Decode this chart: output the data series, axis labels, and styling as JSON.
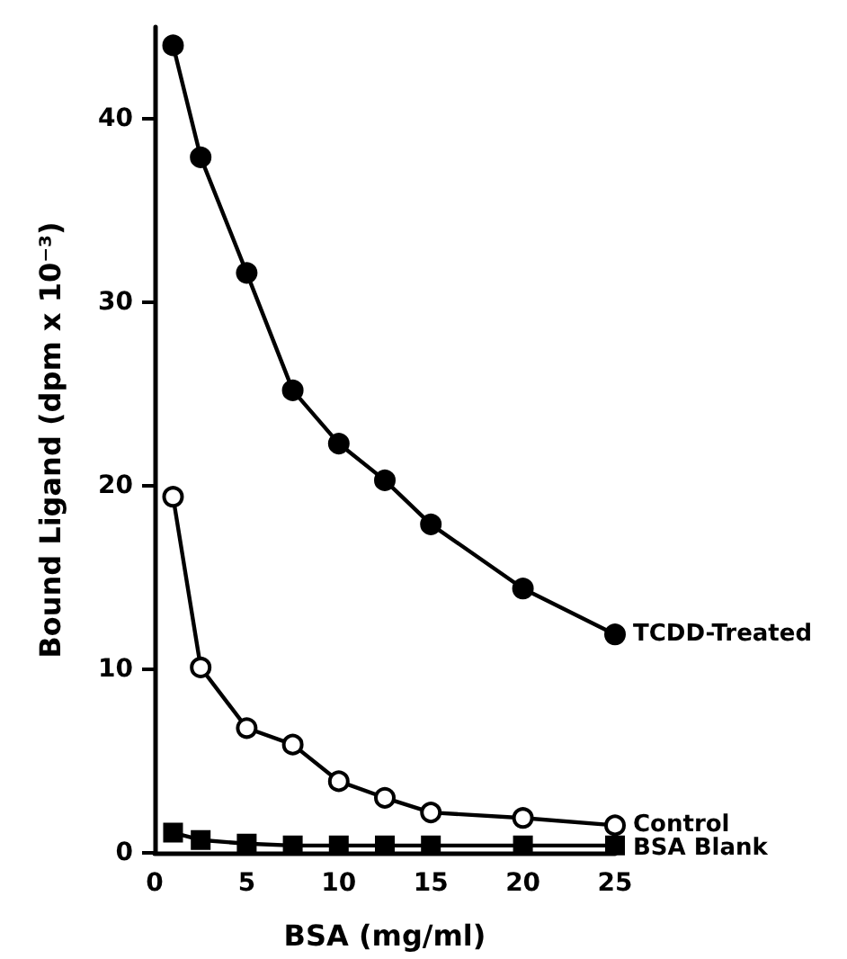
{
  "chart_data": {
    "type": "line",
    "xlabel": "BSA (mg/ml)",
    "ylabel": "Bound Ligand (dpm x 10⁻³)",
    "xlim": [
      0,
      25
    ],
    "xticks": [
      0,
      5,
      10,
      15,
      20,
      25
    ],
    "ylim": [
      0,
      45
    ],
    "yticks": [
      0,
      10,
      20,
      30,
      40
    ],
    "x": [
      1,
      2.5,
      5,
      7.5,
      10,
      12.5,
      15,
      20,
      25
    ],
    "grid": false,
    "legend": false,
    "line_style": "solid",
    "series": [
      {
        "name": "TCDD-Treated",
        "color": "#000000",
        "marker": "circle",
        "values": [
          44.0,
          37.9,
          31.6,
          25.2,
          22.3,
          20.3,
          17.9,
          14.4,
          11.9
        ]
      },
      {
        "name": "Control",
        "color": "#000000",
        "marker": "open circle",
        "values": [
          19.4,
          10.1,
          6.8,
          5.9,
          3.9,
          3.0,
          2.2,
          1.9,
          1.5
        ]
      },
      {
        "name": "BSA Blank",
        "color": "#000000",
        "marker": "square",
        "values": [
          1.1,
          0.7,
          0.5,
          0.4,
          0.4,
          0.4,
          0.4,
          0.4,
          0.4
        ]
      }
    ]
  }
}
